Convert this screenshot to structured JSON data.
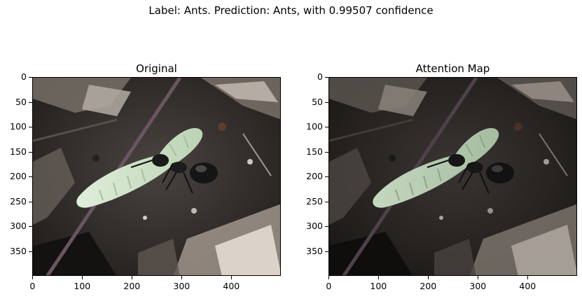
{
  "figure": {
    "suptitle": "Label: Ants. Prediction: Ants, with 0.99507 confidence"
  },
  "panels": [
    {
      "title": "Original",
      "image": "photo-ant-carrying-larva",
      "yticks": [
        "0",
        "50",
        "100",
        "150",
        "200",
        "250",
        "300",
        "350"
      ],
      "xticks": [
        "0",
        "100",
        "200",
        "300",
        "400"
      ]
    },
    {
      "title": "Attention Map",
      "image": "photo-ant-carrying-larva-attention-dimmed",
      "yticks": [
        "0",
        "50",
        "100",
        "150",
        "200",
        "250",
        "300",
        "350"
      ],
      "xticks": [
        "0",
        "100",
        "200",
        "300",
        "400"
      ]
    }
  ],
  "colors": {
    "larva": "#c9ddc0",
    "ant": "#1a1a1a",
    "ground": "#3b3632",
    "leaf": "#b9b0a8"
  }
}
